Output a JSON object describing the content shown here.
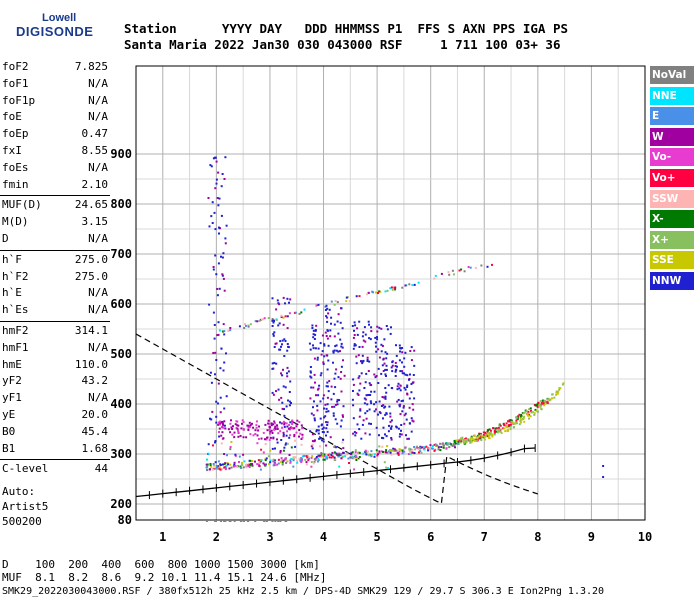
{
  "logo": {
    "top": "Lowell",
    "main": "DIGISONDE"
  },
  "header": {
    "line1": "Station      YYYY DAY   DDD HHMMSS P1  FFS S AXN PPS IGA PS",
    "line2": "Santa Maria 2022 Jan30 030 043000 RSF     1 711 100 03+ 36"
  },
  "params": [
    {
      "name": "foF2",
      "value": "7.825"
    },
    {
      "name": "foF1",
      "value": "N/A"
    },
    {
      "name": "foF1p",
      "value": "N/A"
    },
    {
      "name": "foE",
      "value": "N/A"
    },
    {
      "name": "foEp",
      "value": "0.47"
    },
    {
      "name": "fxI",
      "value": "8.55"
    },
    {
      "name": "foEs",
      "value": "N/A"
    },
    {
      "name": "fmin",
      "value": "2.10"
    },
    {
      "name": "MUF(D)",
      "value": "24.65"
    },
    {
      "name": "M(D)",
      "value": "3.15"
    },
    {
      "name": "D",
      "value": "N/A"
    },
    {
      "name": "h`F",
      "value": "275.0"
    },
    {
      "name": "h`F2",
      "value": "275.0"
    },
    {
      "name": "h`E",
      "value": "N/A"
    },
    {
      "name": "h`Es",
      "value": "N/A"
    },
    {
      "name": "hmF2",
      "value": "314.1"
    },
    {
      "name": "hmF1",
      "value": "N/A"
    },
    {
      "name": "hmE",
      "value": "110.0"
    },
    {
      "name": "yF2",
      "value": "43.2"
    },
    {
      "name": "yF1",
      "value": "N/A"
    },
    {
      "name": "yE",
      "value": "20.0"
    },
    {
      "name": "B0",
      "value": "45.4"
    },
    {
      "name": "B1",
      "value": "1.68"
    },
    {
      "name": "C-level",
      "value": "44"
    }
  ],
  "auto": {
    "label": "Auto:",
    "program": "Artist5",
    "code": "500200"
  },
  "legend": [
    {
      "label": "NoVal",
      "color": "#808080"
    },
    {
      "label": "NNE",
      "color": "#00e5ff"
    },
    {
      "label": "E",
      "color": "#4a90e8"
    },
    {
      "label": "W",
      "color": "#a000a0"
    },
    {
      "label": "Vo-",
      "color": "#e83cd0"
    },
    {
      "label": "Vo+",
      "color": "#ff0040"
    },
    {
      "label": "SSW",
      "color": "#ffb4b4"
    },
    {
      "label": "X-",
      "color": "#007a00"
    },
    {
      "label": "X+",
      "color": "#88c060"
    },
    {
      "label": "SSE",
      "color": "#c8c800"
    },
    {
      "label": "NNW",
      "color": "#2020d0"
    }
  ],
  "axes": {
    "x_ticks": [
      "1",
      "2",
      "3",
      "4",
      "5",
      "6",
      "7",
      "8",
      "9",
      "10"
    ],
    "y_ticks": [
      "900",
      "800",
      "700",
      "600",
      "500",
      "400",
      "300",
      "200",
      "80"
    ]
  },
  "muf_table": {
    "d_line": "D    100  200  400  600  800 1000 1500 3000 [km]",
    "muf_line": "MUF  8.1  8.2  8.6  9.2 10.1 11.4 15.1 24.6 [MHz]"
  },
  "footer": "SMK29_2022030043000.RSF / 380fx512h 25 kHz 2.5 km / DPS-4D SMK29 129 / 29.7 S 306.3 E Ion2Png 1.3.20"
}
